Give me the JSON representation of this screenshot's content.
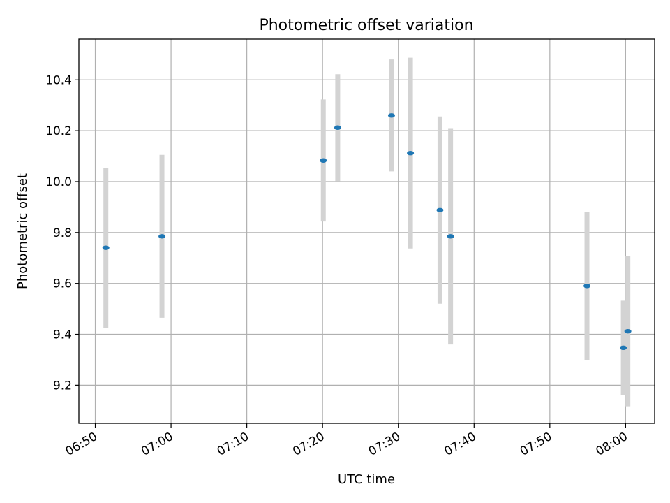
{
  "chart_data": {
    "type": "scatter",
    "title": "Photometric offset variation",
    "xlabel": "UTC time",
    "ylabel": "Photometric offset",
    "x_tick_labels": [
      "06:50",
      "07:00",
      "07:10",
      "07:20",
      "07:30",
      "07:40",
      "07:50",
      "08:00"
    ],
    "y_tick_labels": [
      "9.2",
      "9.4",
      "9.6",
      "9.8",
      "10.0",
      "10.2",
      "10.4"
    ],
    "x_range": [
      "06:47:50",
      "08:03:50"
    ],
    "ylim": [
      9.05,
      10.56
    ],
    "grid": true,
    "legend": "none",
    "point_color": "#1f77b4",
    "errorbar_color": "#d3d3d3",
    "points": [
      {
        "time": "06:51:24",
        "y": 9.74,
        "yerr": 0.315
      },
      {
        "time": "06:58:48",
        "y": 9.785,
        "yerr": 0.32
      },
      {
        "time": "07:20:06",
        "y": 10.083,
        "yerr": 0.24
      },
      {
        "time": "07:22:00",
        "y": 10.212,
        "yerr": 0.21
      },
      {
        "time": "07:29:06",
        "y": 10.26,
        "yerr": 0.22
      },
      {
        "time": "07:31:36",
        "y": 10.112,
        "yerr": 0.375
      },
      {
        "time": "07:35:30",
        "y": 9.888,
        "yerr": 0.368
      },
      {
        "time": "07:36:54",
        "y": 9.785,
        "yerr": 0.425
      },
      {
        "time": "07:54:54",
        "y": 9.59,
        "yerr": 0.29
      },
      {
        "time": "07:59:42",
        "y": 9.347,
        "yerr": 0.185
      },
      {
        "time": "08:00:18",
        "y": 9.412,
        "yerr": 0.295
      }
    ]
  }
}
